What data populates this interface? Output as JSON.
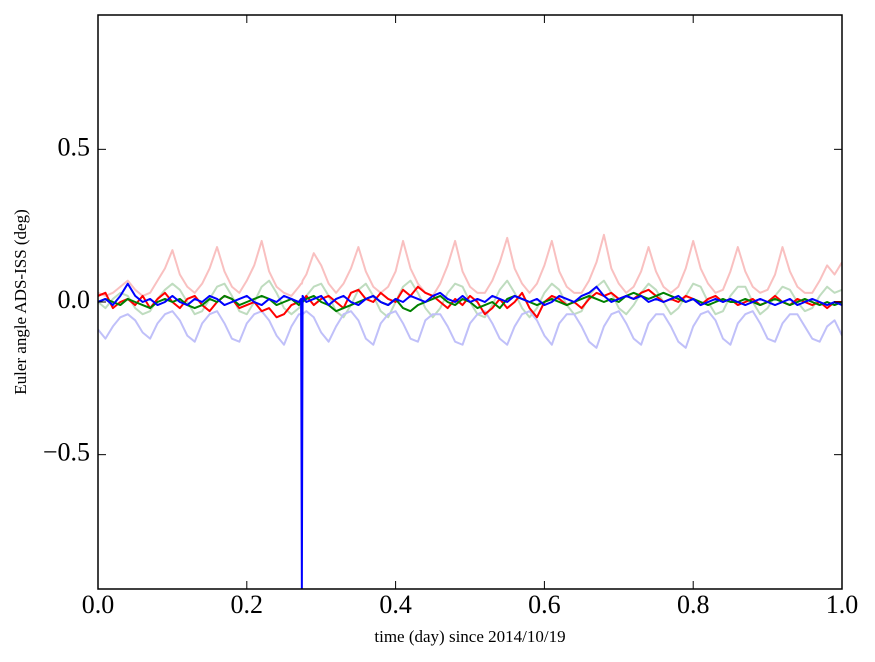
{
  "chart_data": {
    "type": "line",
    "xlabel": "time (day) since 2014/10/19",
    "ylabel": "Euler angle ADS-ISS (deg)",
    "xlim": [
      0,
      1
    ],
    "ylim": [
      -0.94,
      0.94
    ],
    "xticks": [
      {
        "value": 0,
        "label": "0.0"
      },
      0.2,
      0.4,
      0.6,
      0.8,
      {
        "value": 1,
        "label": "1.0"
      }
    ],
    "yticks": [
      {
        "value": -0.5,
        "label": "−0.5"
      },
      {
        "value": 0,
        "label": "0.0"
      },
      0.5
    ],
    "x": [
      0.0,
      0.01,
      0.02,
      0.03,
      0.04,
      0.05,
      0.06,
      0.07,
      0.08,
      0.09,
      0.1,
      0.11,
      0.12,
      0.13,
      0.14,
      0.15,
      0.16,
      0.17,
      0.18,
      0.19,
      0.2,
      0.21,
      0.22,
      0.23,
      0.24,
      0.25,
      0.26,
      0.27,
      0.273,
      0.274,
      0.275,
      0.28,
      0.29,
      0.3,
      0.31,
      0.32,
      0.33,
      0.34,
      0.35,
      0.36,
      0.37,
      0.38,
      0.39,
      0.4,
      0.41,
      0.42,
      0.43,
      0.44,
      0.45,
      0.46,
      0.47,
      0.48,
      0.49,
      0.5,
      0.51,
      0.52,
      0.53,
      0.54,
      0.55,
      0.56,
      0.57,
      0.58,
      0.59,
      0.6,
      0.61,
      0.62,
      0.63,
      0.64,
      0.65,
      0.66,
      0.67,
      0.68,
      0.69,
      0.7,
      0.71,
      0.72,
      0.73,
      0.74,
      0.75,
      0.76,
      0.77,
      0.78,
      0.79,
      0.8,
      0.81,
      0.82,
      0.83,
      0.84,
      0.85,
      0.86,
      0.87,
      0.88,
      0.89,
      0.9,
      0.91,
      0.92,
      0.93,
      0.94,
      0.95,
      0.96,
      0.97,
      0.98,
      0.99,
      1.0
    ],
    "series": [
      {
        "color": "#f9c0c0",
        "values": [
          0.03,
          0.02,
          0.03,
          0.05,
          0.07,
          0.04,
          0.02,
          0.03,
          0.07,
          0.11,
          0.17,
          0.09,
          0.05,
          0.03,
          0.06,
          0.11,
          0.18,
          0.1,
          0.05,
          0.03,
          0.07,
          0.12,
          0.2,
          0.1,
          0.05,
          0.03,
          0.02,
          0.05,
          0.06,
          0.06,
          0.07,
          0.09,
          0.16,
          0.12,
          0.06,
          0.03,
          0.06,
          0.11,
          0.18,
          0.1,
          0.05,
          0.03,
          0.05,
          0.1,
          0.2,
          0.11,
          0.06,
          0.03,
          0.02,
          0.06,
          0.12,
          0.2,
          0.1,
          0.05,
          0.03,
          0.03,
          0.07,
          0.13,
          0.21,
          0.11,
          0.06,
          0.03,
          0.06,
          0.12,
          0.2,
          0.1,
          0.05,
          0.03,
          0.03,
          0.07,
          0.13,
          0.22,
          0.11,
          0.06,
          0.03,
          0.05,
          0.1,
          0.18,
          0.1,
          0.05,
          0.03,
          0.05,
          0.11,
          0.2,
          0.11,
          0.06,
          0.03,
          0.04,
          0.1,
          0.18,
          0.1,
          0.05,
          0.03,
          0.04,
          0.09,
          0.18,
          0.1,
          0.05,
          0.03,
          0.03,
          0.07,
          0.12,
          0.09,
          0.13
        ]
      },
      {
        "color": "#bfdcbf",
        "values": [
          0.0,
          -0.02,
          0.01,
          0.03,
          0.02,
          -0.02,
          -0.04,
          -0.03,
          0.01,
          0.04,
          0.06,
          0.04,
          0.0,
          -0.04,
          -0.03,
          0.01,
          0.05,
          0.06,
          0.02,
          -0.03,
          -0.04,
          0.0,
          0.05,
          0.07,
          0.03,
          -0.02,
          -0.04,
          -0.02,
          -0.01,
          -0.01,
          0.0,
          0.02,
          0.05,
          0.06,
          0.02,
          -0.03,
          -0.05,
          -0.01,
          0.04,
          0.06,
          0.02,
          -0.03,
          -0.05,
          0.0,
          0.05,
          0.07,
          0.03,
          -0.02,
          -0.05,
          -0.02,
          0.03,
          0.06,
          0.05,
          0.0,
          -0.04,
          -0.05,
          -0.01,
          0.04,
          0.07,
          0.03,
          -0.02,
          -0.05,
          -0.02,
          0.03,
          0.06,
          0.04,
          -0.01,
          -0.04,
          -0.03,
          0.02,
          0.05,
          0.07,
          0.03,
          -0.02,
          -0.04,
          -0.01,
          0.03,
          0.06,
          0.04,
          0.0,
          -0.04,
          -0.02,
          0.02,
          0.06,
          0.05,
          0.0,
          -0.04,
          -0.03,
          0.02,
          0.05,
          0.05,
          0.0,
          -0.04,
          -0.02,
          0.02,
          0.05,
          0.04,
          0.0,
          -0.03,
          -0.02,
          0.02,
          0.05,
          0.03,
          0.04
        ]
      },
      {
        "color": "#c0c0f9",
        "values": [
          -0.09,
          -0.12,
          -0.08,
          -0.05,
          -0.04,
          -0.06,
          -0.1,
          -0.12,
          -0.07,
          -0.04,
          -0.03,
          -0.06,
          -0.11,
          -0.13,
          -0.07,
          -0.04,
          -0.03,
          -0.07,
          -0.12,
          -0.13,
          -0.07,
          -0.04,
          -0.03,
          -0.06,
          -0.11,
          -0.14,
          -0.08,
          -0.04,
          -0.04,
          -0.04,
          -0.04,
          -0.03,
          -0.05,
          -0.1,
          -0.13,
          -0.08,
          -0.04,
          -0.03,
          -0.06,
          -0.12,
          -0.14,
          -0.07,
          -0.04,
          -0.03,
          -0.07,
          -0.12,
          -0.13,
          -0.06,
          -0.04,
          -0.04,
          -0.08,
          -0.13,
          -0.14,
          -0.07,
          -0.04,
          -0.03,
          -0.07,
          -0.12,
          -0.14,
          -0.08,
          -0.04,
          -0.03,
          -0.06,
          -0.11,
          -0.14,
          -0.07,
          -0.04,
          -0.04,
          -0.08,
          -0.13,
          -0.15,
          -0.08,
          -0.04,
          -0.03,
          -0.07,
          -0.12,
          -0.14,
          -0.07,
          -0.04,
          -0.04,
          -0.08,
          -0.13,
          -0.15,
          -0.08,
          -0.04,
          -0.03,
          -0.06,
          -0.12,
          -0.14,
          -0.07,
          -0.04,
          -0.03,
          -0.07,
          -0.12,
          -0.13,
          -0.07,
          -0.04,
          -0.04,
          -0.08,
          -0.12,
          -0.13,
          -0.08,
          -0.06,
          -0.11
        ]
      },
      {
        "color": "#ff0000",
        "values": [
          0.02,
          0.03,
          -0.02,
          0.0,
          0.01,
          -0.01,
          0.02,
          -0.02,
          0.01,
          0.03,
          0.0,
          -0.02,
          0.01,
          0.02,
          -0.01,
          -0.03,
          0.0,
          0.02,
          0.01,
          -0.02,
          -0.01,
          0.0,
          -0.03,
          -0.02,
          -0.05,
          -0.04,
          -0.01,
          0.0,
          0.01,
          0.01,
          0.0,
          0.02,
          -0.01,
          0.01,
          0.02,
          0.0,
          -0.02,
          0.03,
          0.04,
          0.01,
          0.0,
          0.03,
          0.01,
          0.0,
          0.04,
          0.02,
          0.05,
          0.03,
          0.02,
          0.0,
          -0.02,
          0.01,
          -0.01,
          0.02,
          0.0,
          -0.04,
          -0.02,
          0.01,
          -0.02,
          0.0,
          0.03,
          -0.02,
          -0.05,
          0.0,
          0.02,
          0.01,
          -0.01,
          0.0,
          -0.02,
          0.01,
          0.03,
          0.02,
          0.03,
          0.01,
          0.02,
          0.01,
          0.03,
          0.04,
          0.02,
          0.0,
          0.01,
          0.0,
          0.02,
          0.01,
          -0.01,
          0.01,
          0.02,
          0.0,
          0.01,
          -0.01,
          0.0,
          0.01,
          -0.01,
          0.0,
          0.02,
          0.0,
          -0.01,
          0.01,
          0.0,
          -0.01,
          0.0,
          -0.02,
          0.0,
          0.0
        ]
      },
      {
        "color": "#008000",
        "values": [
          0.0,
          0.01,
          0.0,
          -0.01,
          0.01,
          0.0,
          -0.01,
          -0.02,
          0.0,
          0.01,
          0.0,
          0.01,
          -0.01,
          -0.02,
          -0.01,
          0.01,
          0.0,
          0.02,
          0.01,
          -0.01,
          0.0,
          0.01,
          0.02,
          0.01,
          -0.01,
          0.0,
          0.01,
          -0.01,
          0.0,
          0.0,
          0.0,
          0.01,
          0.02,
          0.0,
          -0.01,
          -0.03,
          -0.02,
          -0.01,
          0.0,
          0.01,
          0.02,
          0.0,
          -0.01,
          0.01,
          -0.02,
          -0.03,
          -0.01,
          0.0,
          0.01,
          0.02,
          0.0,
          -0.01,
          0.01,
          0.0,
          -0.02,
          -0.01,
          0.0,
          -0.02,
          0.01,
          0.02,
          0.01,
          0.0,
          -0.01,
          0.0,
          0.01,
          0.0,
          -0.01,
          0.0,
          0.01,
          0.02,
          0.01,
          0.0,
          0.01,
          0.0,
          0.02,
          0.03,
          0.02,
          0.01,
          0.02,
          0.03,
          0.02,
          0.01,
          0.0,
          0.01,
          0.0,
          -0.01,
          0.0,
          0.01,
          0.0,
          0.0,
          0.01,
          0.0,
          -0.01,
          0.0,
          0.01,
          0.0,
          -0.01,
          0.0,
          0.01,
          0.0,
          -0.01,
          0.0,
          -0.01,
          0.0
        ]
      },
      {
        "color": "#0000ff",
        "values": [
          0.0,
          0.01,
          -0.01,
          0.02,
          0.06,
          0.02,
          0.0,
          0.01,
          -0.01,
          0.0,
          0.02,
          0.0,
          -0.01,
          0.01,
          0.0,
          0.02,
          0.01,
          -0.01,
          0.0,
          0.01,
          0.02,
          0.0,
          -0.01,
          0.01,
          0.0,
          0.02,
          0.01,
          0.0,
          0.01,
          -0.94,
          0.02,
          0.0,
          0.01,
          0.02,
          -0.01,
          0.01,
          0.02,
          0.0,
          -0.01,
          0.01,
          0.02,
          0.0,
          -0.01,
          0.01,
          0.0,
          0.02,
          0.01,
          0.0,
          0.02,
          0.03,
          0.01,
          0.0,
          0.02,
          0.0,
          0.01,
          0.0,
          0.02,
          0.01,
          0.0,
          0.02,
          0.01,
          0.0,
          0.01,
          -0.01,
          0.0,
          0.02,
          0.01,
          0.0,
          0.02,
          0.03,
          0.05,
          0.02,
          0.0,
          0.01,
          0.02,
          0.01,
          0.02,
          0.0,
          0.01,
          0.0,
          0.01,
          0.02,
          0.0,
          0.01,
          -0.01,
          0.0,
          0.01,
          0.0,
          0.01,
          0.0,
          -0.01,
          0.0,
          0.01,
          0.0,
          -0.01,
          0.0,
          0.01,
          -0.01,
          0.0,
          0.01,
          0.0,
          -0.01,
          0.0,
          -0.01
        ]
      }
    ]
  }
}
